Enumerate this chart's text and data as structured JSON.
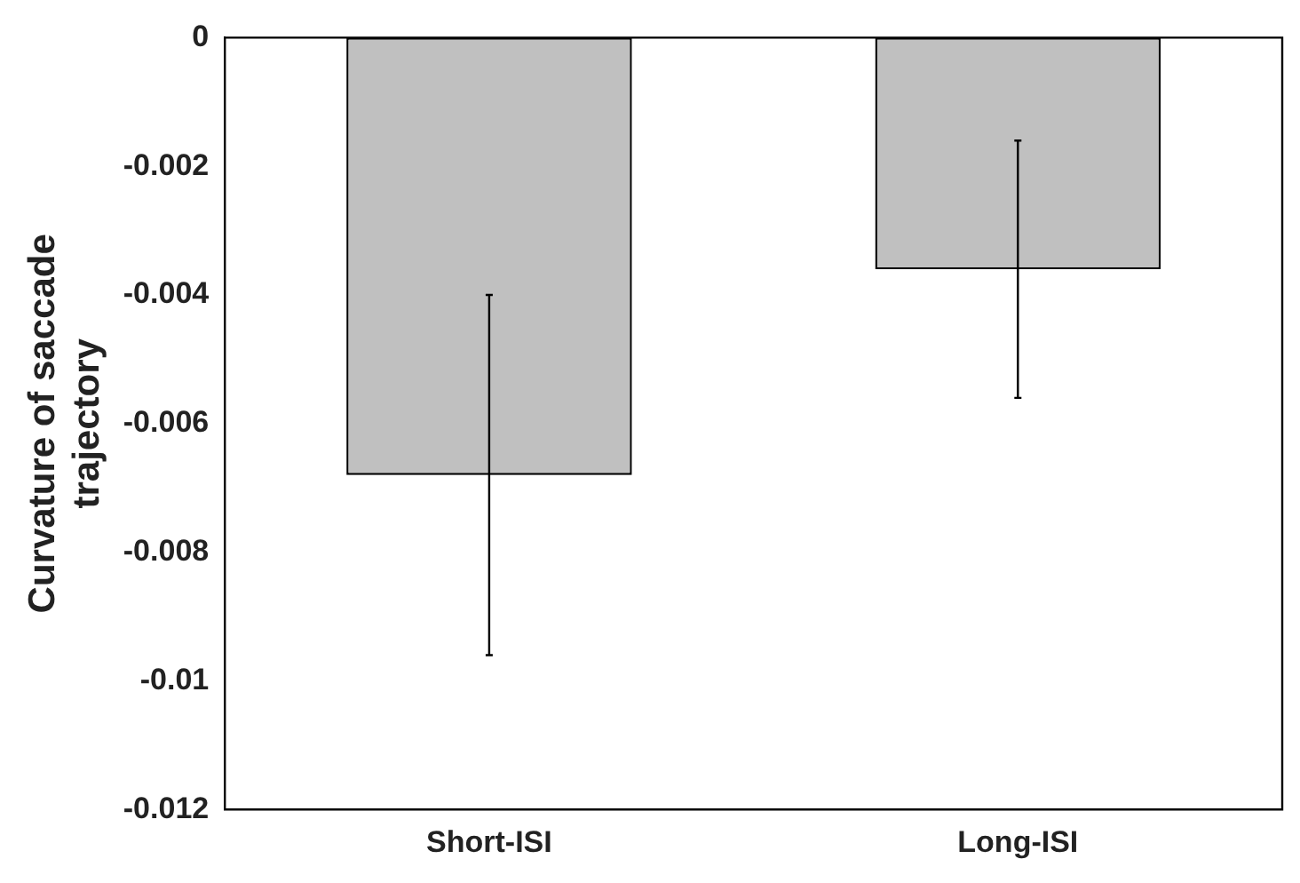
{
  "chart_data": {
    "type": "bar",
    "ylabel": "Curvature of saccade trajectory",
    "categories": [
      "Short-ISI",
      "Long-ISI"
    ],
    "values": [
      -0.0068,
      -0.0036
    ],
    "errors": [
      0.0028,
      0.002
    ],
    "color": "#c0c0c0",
    "ylim": [
      -0.012,
      0
    ],
    "yticks": [
      0,
      -0.002,
      -0.004,
      -0.006,
      -0.008,
      -0.01,
      -0.012
    ],
    "grid": false,
    "legend": false
  }
}
